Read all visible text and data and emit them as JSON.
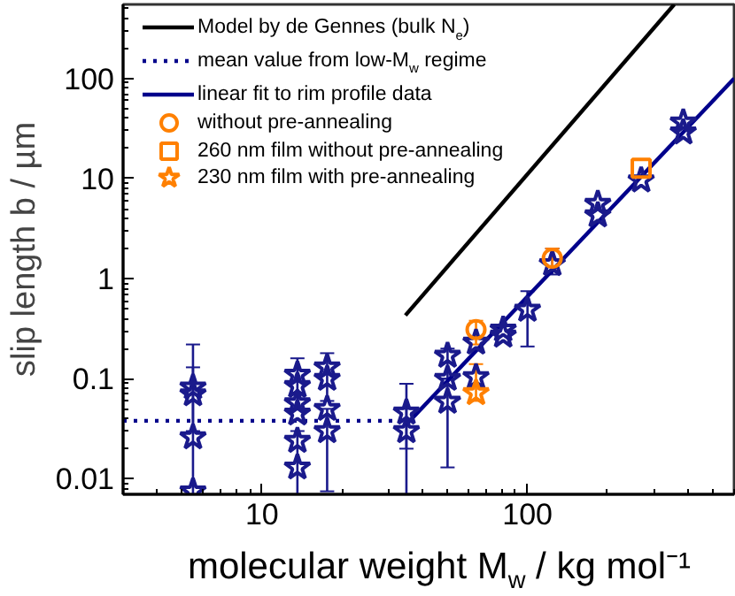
{
  "chart_data": {
    "type": "scatter",
    "xlabel": "molecular weight M$_{w}$ / kg mol⁻¹",
    "ylabel": "slip length b / µm",
    "log": "xy",
    "xlim": [
      3,
      600
    ],
    "ylim": [
      0.007,
      550
    ],
    "xticks": [
      10,
      100
    ],
    "yticks": [
      0.01,
      0.1,
      1,
      10,
      100
    ],
    "grid": false,
    "legend": "top left",
    "series": [
      {
        "name": "Model by de Gennes (bulk N$_{e}$)",
        "type": "line",
        "color": "#000000",
        "line_style": "solid",
        "x": [
          34.7,
          357
        ],
        "values": [
          0.43,
          550
        ]
      },
      {
        "name": "mean value from low-M$_{w}$ regime",
        "type": "line",
        "color": "#00008b",
        "line_style": "dotted",
        "x": [
          3,
          35
        ],
        "values": [
          0.038,
          0.038
        ]
      },
      {
        "name": "linear fit to rim profile data",
        "type": "line",
        "color": "#00008b",
        "line_style": "solid",
        "x": [
          35,
          600
        ],
        "values": [
          0.035,
          100
        ]
      },
      {
        "type": "scatter",
        "marker": "star",
        "color": "#1a1a8c",
        "x": [
          5.5,
          5.5,
          5.5,
          5.5,
          13.6,
          13.6,
          13.6,
          13.6,
          13.6,
          13.6,
          17.6,
          17.6,
          17.6,
          17.6,
          35,
          35,
          50,
          50,
          50,
          64,
          64,
          81,
          81,
          100,
          124,
          184,
          184,
          268,
          386,
          386
        ],
        "values": [
          0.082,
          0.07,
          0.026,
          0.0075,
          0.11,
          0.085,
          0.057,
          0.045,
          0.024,
          0.013,
          0.13,
          0.1,
          0.05,
          0.03,
          0.046,
          0.03,
          0.17,
          0.1,
          0.059,
          0.23,
          0.104,
          0.31,
          0.27,
          0.49,
          1.4,
          5.6,
          4.3,
          9.6,
          36.5,
          29
        ],
        "errors": [
          [
            0.03,
            0.22
          ],
          null,
          [
            0.007,
            0.13
          ],
          null,
          [
            0.05,
            0.16
          ],
          null,
          null,
          null,
          null,
          [
            0.007,
            0.03
          ],
          [
            0.06,
            0.18
          ],
          null,
          null,
          [
            0.0075,
            0.05
          ],
          [
            0.02,
            0.089
          ],
          [
            0.007,
            0.05
          ],
          [
            0.1,
            0.2
          ],
          null,
          [
            0.013,
            0.1
          ],
          null,
          null,
          null,
          null,
          [
            0.21,
            0.75
          ],
          [
            1.1,
            2.0
          ],
          null,
          null,
          null,
          null,
          null
        ]
      },
      {
        "name": "without pre-annealing",
        "type": "scatter",
        "marker": "circle",
        "color": "#ff8000",
        "x": [
          64,
          124
        ],
        "values": [
          0.31,
          1.6
        ],
        "errors": [
          [
            0.22,
            0.38
          ],
          [
            1.2,
            2.0
          ]
        ]
      },
      {
        "name": "260 nm film without pre-annealing",
        "type": "scatter",
        "marker": "square",
        "color": "#ff8000",
        "x": [
          268
        ],
        "values": [
          12.7
        ],
        "errors": [
          null
        ]
      },
      {
        "name": "230 nm film with pre-annealing",
        "type": "scatter",
        "marker": "star",
        "color": "#ff8000",
        "x": [
          64
        ],
        "values": [
          0.072
        ],
        "errors": [
          [
            0.06,
            0.14
          ]
        ]
      }
    ]
  }
}
